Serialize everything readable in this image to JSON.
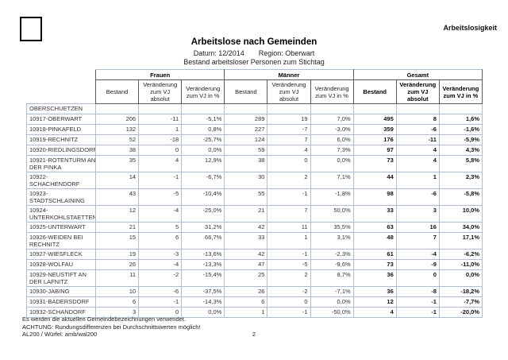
{
  "page": {
    "corner_label": "Arbeitslosigkeit",
    "title": "Arbeitslose nach Gemeinden",
    "date_label": "Datum: 12/2014",
    "region_label": "Region: Oberwart",
    "subtitle": "Bestand arbeitsloser Personen zum Stichtag"
  },
  "table": {
    "groups": [
      {
        "label": "Frauen"
      },
      {
        "label": "Männer"
      },
      {
        "label": "Gesamt"
      }
    ],
    "sub_headers": [
      "Bestand",
      "Veränderung zum VJ absolut",
      "Veränderung zum VJ in %"
    ],
    "rows": [
      {
        "name": "OBERSCHUETZEN",
        "frauen": [
          "",
          "",
          ""
        ],
        "maenner": [
          "",
          "",
          ""
        ],
        "gesamt": [
          "",
          "",
          ""
        ]
      },
      {
        "name": "10917-OBERWART",
        "frauen": [
          "206",
          "-11",
          "-5,1%"
        ],
        "maenner": [
          "289",
          "19",
          "7,0%"
        ],
        "gesamt": [
          "495",
          "8",
          "1,6%"
        ]
      },
      {
        "name": "10918-PINKAFELD",
        "frauen": [
          "132",
          "1",
          "0,8%"
        ],
        "maenner": [
          "227",
          "-7",
          "-3,0%"
        ],
        "gesamt": [
          "359",
          "-6",
          "-1,6%"
        ]
      },
      {
        "name": "10919-RECHNITZ",
        "frauen": [
          "52",
          "-18",
          "-25,7%"
        ],
        "maenner": [
          "124",
          "7",
          "6,0%"
        ],
        "gesamt": [
          "176",
          "-11",
          "-5,9%"
        ]
      },
      {
        "name": "10920-RIEDLINGSDORF",
        "frauen": [
          "38",
          "0",
          "0,0%"
        ],
        "maenner": [
          "59",
          "4",
          "7,3%"
        ],
        "gesamt": [
          "97",
          "4",
          "4,3%"
        ]
      },
      {
        "name": "10921-ROTENTURM AN\nDER PINKA",
        "frauen": [
          "35",
          "4",
          "12,9%"
        ],
        "maenner": [
          "38",
          "0",
          "0,0%"
        ],
        "gesamt": [
          "73",
          "4",
          "5,8%"
        ]
      },
      {
        "name": "10922-\nSCHACHENDORF",
        "frauen": [
          "14",
          "-1",
          "-6,7%"
        ],
        "maenner": [
          "30",
          "2",
          "7,1%"
        ],
        "gesamt": [
          "44",
          "1",
          "2,3%"
        ]
      },
      {
        "name": "10923-\nSTADTSCHLAINING",
        "frauen": [
          "43",
          "-5",
          "-10,4%"
        ],
        "maenner": [
          "55",
          "-1",
          "-1,8%"
        ],
        "gesamt": [
          "98",
          "-6",
          "-5,8%"
        ]
      },
      {
        "name": "10924-\nUNTERKOHLSTAETTEN",
        "frauen": [
          "12",
          "-4",
          "-25,0%"
        ],
        "maenner": [
          "21",
          "7",
          "50,0%"
        ],
        "gesamt": [
          "33",
          "3",
          "10,0%"
        ]
      },
      {
        "name": "10925-UNTERWART",
        "frauen": [
          "21",
          "5",
          "31,2%"
        ],
        "maenner": [
          "42",
          "11",
          "35,5%"
        ],
        "gesamt": [
          "63",
          "16",
          "34,0%"
        ]
      },
      {
        "name": "10926-WEIDEN BEI\nRECHNITZ",
        "frauen": [
          "15",
          "6",
          "66,7%"
        ],
        "maenner": [
          "33",
          "1",
          "3,1%"
        ],
        "gesamt": [
          "48",
          "7",
          "17,1%"
        ]
      },
      {
        "name": "10927-WIESFLECK",
        "frauen": [
          "19",
          "-3",
          "-13,6%"
        ],
        "maenner": [
          "42",
          "-1",
          "-2,3%"
        ],
        "gesamt": [
          "61",
          "-4",
          "-6,2%"
        ]
      },
      {
        "name": "10928-WOLFAU",
        "frauen": [
          "26",
          "-4",
          "-13,3%"
        ],
        "maenner": [
          "47",
          "-5",
          "-9,6%"
        ],
        "gesamt": [
          "73",
          "-9",
          "-11,0%"
        ]
      },
      {
        "name": "10929-NEUSTIFT AN\nDER LAFNITZ",
        "frauen": [
          "11",
          "-2",
          "-15,4%"
        ],
        "maenner": [
          "25",
          "2",
          "8,7%"
        ],
        "gesamt": [
          "36",
          "0",
          "0,0%"
        ]
      },
      {
        "name": "10930-JABING",
        "frauen": [
          "10",
          "-6",
          "-37,5%"
        ],
        "maenner": [
          "26",
          "-2",
          "-7,1%"
        ],
        "gesamt": [
          "36",
          "-8",
          "-18,2%"
        ]
      },
      {
        "name": "10931-BADERSDORF",
        "frauen": [
          "6",
          "-1",
          "-14,3%"
        ],
        "maenner": [
          "6",
          "0",
          "0,0%"
        ],
        "gesamt": [
          "12",
          "-1",
          "-7,7%"
        ]
      },
      {
        "name": "10932-SCHANDORF",
        "frauen": [
          "3",
          "0",
          "0,0%"
        ],
        "maenner": [
          "1",
          "-1",
          "-50,0%"
        ],
        "gesamt": [
          "4",
          "-1",
          "-20,0%"
        ]
      }
    ]
  },
  "footer": {
    "note1": "Es werden die aktuellen Gemeindebezeichnungen verwendet.",
    "note2": "ACHTUNG: Rundungsdifferenzen bei Durchschnittswerten möglich!",
    "source": "AL200 / Würfel: amb/wal200",
    "page_number": "2"
  },
  "colors": {
    "grid_line": "#aebfd3",
    "header_border": "#5a5a5a",
    "text": "#2b2b2b"
  }
}
